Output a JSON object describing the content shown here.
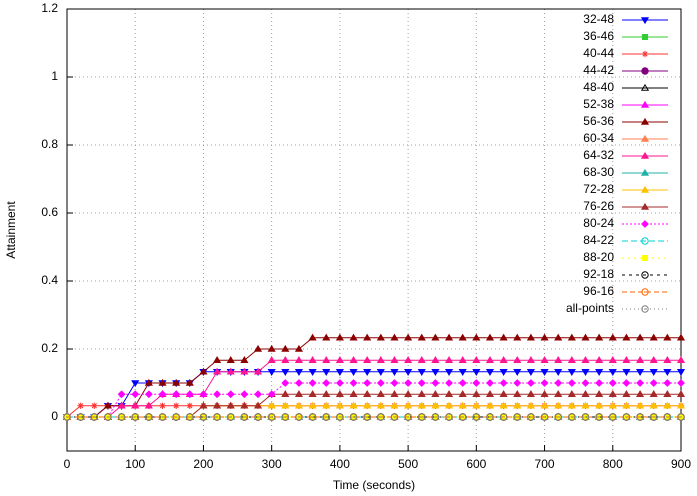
{
  "chart_data": {
    "type": "line",
    "xlabel": "Time (seconds)",
    "ylabel": "Attainment",
    "xlim": [
      0,
      900
    ],
    "ylim": [
      -0.1,
      1.2
    ],
    "xticks": [
      0,
      100,
      200,
      300,
      400,
      500,
      600,
      700,
      800,
      900
    ],
    "yticks": [
      0,
      0.2,
      0.4,
      0.6,
      0.8,
      1,
      1.2
    ],
    "grid": true,
    "legend": "top-right",
    "x": [
      0,
      20,
      40,
      60,
      80,
      100,
      120,
      140,
      160,
      180,
      200,
      220,
      240,
      260,
      280,
      300,
      320,
      340,
      360,
      380,
      400,
      420,
      440,
      460,
      480,
      500,
      520,
      540,
      560,
      580,
      600,
      620,
      640,
      660,
      680,
      700,
      720,
      740,
      760,
      780,
      800,
      820,
      840,
      860,
      880,
      900
    ],
    "series": [
      {
        "name": "32-48",
        "color": "#0000ff",
        "marker": "tri-down",
        "values": [
          0,
          0,
          0,
          0.033,
          0.033,
          0.1,
          0.1,
          0.1,
          0.1,
          0.1,
          0.133,
          0.133,
          0.133,
          0.133,
          0.133,
          0.133,
          0.133,
          0.133,
          0.133,
          0.133,
          0.133,
          0.133,
          0.133,
          0.133,
          0.133,
          0.133,
          0.133,
          0.133,
          0.133,
          0.133,
          0.133,
          0.133,
          0.133,
          0.133,
          0.133,
          0.133,
          0.133,
          0.133,
          0.133,
          0.133,
          0.133,
          0.133,
          0.133,
          0.133,
          0.133,
          0.133
        ]
      },
      {
        "name": "36-46",
        "color": "#33cc33",
        "marker": "square",
        "values": [
          0,
          0,
          0,
          0,
          0,
          0,
          0,
          0,
          0,
          0,
          0,
          0,
          0,
          0,
          0,
          0,
          0,
          0,
          0,
          0,
          0,
          0,
          0,
          0,
          0,
          0,
          0,
          0,
          0,
          0,
          0,
          0,
          0,
          0,
          0,
          0,
          0,
          0,
          0,
          0,
          0,
          0,
          0,
          0,
          0,
          0
        ]
      },
      {
        "name": "40-44",
        "color": "#ff3030",
        "marker": "star",
        "values": [
          0,
          0.033,
          0.033,
          0.033,
          0.033,
          0.033,
          0.033,
          0.033,
          0.033,
          0.033,
          0.033,
          0.033,
          0.033,
          0.033,
          0.033,
          0.033,
          0.033,
          0.033,
          0.033,
          0.033,
          0.033,
          0.033,
          0.033,
          0.033,
          0.033,
          0.033,
          0.033,
          0.033,
          0.033,
          0.033,
          0.033,
          0.033,
          0.033,
          0.033,
          0.033,
          0.033,
          0.033,
          0.033,
          0.033,
          0.033,
          0.033,
          0.033,
          0.033,
          0.033,
          0.033,
          0.033
        ]
      },
      {
        "name": "44-42",
        "color": "#800080",
        "marker": "circle",
        "values": [
          0,
          0,
          0,
          0,
          0,
          0,
          0,
          0,
          0,
          0,
          0,
          0,
          0,
          0,
          0,
          0,
          0,
          0,
          0,
          0,
          0,
          0,
          0,
          0,
          0,
          0,
          0,
          0,
          0,
          0,
          0,
          0,
          0,
          0,
          0,
          0,
          0,
          0,
          0,
          0,
          0,
          0,
          0,
          0,
          0,
          0
        ]
      },
      {
        "name": "48-40",
        "color": "#000000",
        "marker": "tri-up-open",
        "values": [
          0,
          0,
          0,
          0,
          0,
          0,
          0,
          0,
          0,
          0,
          0,
          0,
          0,
          0,
          0,
          0,
          0,
          0,
          0,
          0,
          0,
          0,
          0,
          0,
          0,
          0,
          0,
          0,
          0,
          0,
          0,
          0,
          0,
          0,
          0,
          0,
          0,
          0,
          0,
          0,
          0,
          0,
          0,
          0,
          0,
          0
        ]
      },
      {
        "name": "52-38",
        "color": "#ff00ff",
        "marker": "tri-up",
        "values": [
          0,
          0,
          0,
          0,
          0,
          0,
          0,
          0,
          0,
          0,
          0,
          0,
          0,
          0,
          0,
          0,
          0,
          0,
          0,
          0,
          0,
          0,
          0,
          0,
          0,
          0,
          0,
          0,
          0,
          0,
          0,
          0,
          0,
          0,
          0,
          0,
          0,
          0,
          0,
          0,
          0,
          0,
          0,
          0,
          0,
          0
        ]
      },
      {
        "name": "56-36",
        "color": "#8b0000",
        "marker": "tri-up",
        "values": [
          0,
          0,
          0,
          0.033,
          0.033,
          0.033,
          0.1,
          0.1,
          0.1,
          0.1,
          0.133,
          0.167,
          0.167,
          0.167,
          0.2,
          0.2,
          0.2,
          0.2,
          0.233,
          0.233,
          0.233,
          0.233,
          0.233,
          0.233,
          0.233,
          0.233,
          0.233,
          0.233,
          0.233,
          0.233,
          0.233,
          0.233,
          0.233,
          0.233,
          0.233,
          0.233,
          0.233,
          0.233,
          0.233,
          0.233,
          0.233,
          0.233,
          0.233,
          0.233,
          0.233,
          0.233
        ]
      },
      {
        "name": "60-34",
        "color": "#ff7f50",
        "marker": "tri-up",
        "values": [
          0,
          0,
          0,
          0,
          0,
          0,
          0,
          0,
          0,
          0,
          0,
          0,
          0,
          0,
          0,
          0,
          0,
          0,
          0,
          0,
          0,
          0,
          0,
          0,
          0,
          0,
          0,
          0,
          0,
          0,
          0,
          0,
          0,
          0,
          0,
          0,
          0,
          0,
          0,
          0,
          0,
          0,
          0,
          0,
          0,
          0
        ]
      },
      {
        "name": "64-32",
        "color": "#ff1493",
        "marker": "tri-up",
        "values": [
          0,
          0,
          0,
          0,
          0.033,
          0.033,
          0.033,
          0.067,
          0.067,
          0.067,
          0.067,
          0.133,
          0.133,
          0.133,
          0.133,
          0.167,
          0.167,
          0.167,
          0.167,
          0.167,
          0.167,
          0.167,
          0.167,
          0.167,
          0.167,
          0.167,
          0.167,
          0.167,
          0.167,
          0.167,
          0.167,
          0.167,
          0.167,
          0.167,
          0.167,
          0.167,
          0.167,
          0.167,
          0.167,
          0.167,
          0.167,
          0.167,
          0.167,
          0.167,
          0.167,
          0.167
        ]
      },
      {
        "name": "68-30",
        "color": "#20b2aa",
        "marker": "tri-up",
        "values": [
          0,
          0,
          0,
          0,
          0,
          0,
          0,
          0,
          0,
          0,
          0,
          0,
          0,
          0,
          0,
          0,
          0,
          0,
          0,
          0,
          0,
          0,
          0,
          0,
          0,
          0,
          0,
          0,
          0,
          0,
          0,
          0,
          0,
          0,
          0,
          0,
          0,
          0,
          0,
          0,
          0,
          0,
          0,
          0,
          0,
          0
        ]
      },
      {
        "name": "72-28",
        "color": "#ffc000",
        "marker": "tri-up",
        "values": [
          0,
          0,
          0,
          0,
          0,
          0,
          0,
          0,
          0,
          0,
          0.033,
          0.033,
          0.033,
          0.033,
          0.033,
          0.033,
          0.033,
          0.033,
          0.033,
          0.033,
          0.033,
          0.033,
          0.033,
          0.033,
          0.033,
          0.033,
          0.033,
          0.033,
          0.033,
          0.033,
          0.033,
          0.033,
          0.033,
          0.033,
          0.033,
          0.033,
          0.033,
          0.033,
          0.033,
          0.033,
          0.033,
          0.033,
          0.033,
          0.033,
          0.033,
          0.033
        ]
      },
      {
        "name": "76-26",
        "color": "#a52a2a",
        "marker": "tri-up",
        "values": [
          0,
          0,
          0,
          0,
          0,
          0,
          0,
          0,
          0,
          0,
          0.033,
          0.033,
          0.033,
          0.033,
          0.033,
          0.067,
          0.067,
          0.067,
          0.067,
          0.067,
          0.067,
          0.067,
          0.067,
          0.067,
          0.067,
          0.067,
          0.067,
          0.067,
          0.067,
          0.067,
          0.067,
          0.067,
          0.067,
          0.067,
          0.067,
          0.067,
          0.067,
          0.067,
          0.067,
          0.067,
          0.067,
          0.067,
          0.067,
          0.067,
          0.067,
          0.067
        ]
      },
      {
        "name": "80-24",
        "color": "#ff00ff",
        "marker": "diamond",
        "dash": "2,2",
        "values": [
          0,
          0,
          0,
          0,
          0.067,
          0.067,
          0.067,
          0.067,
          0.067,
          0.067,
          0.067,
          0.067,
          0.067,
          0.067,
          0.067,
          0.067,
          0.1,
          0.1,
          0.1,
          0.1,
          0.1,
          0.1,
          0.1,
          0.1,
          0.1,
          0.1,
          0.1,
          0.1,
          0.1,
          0.1,
          0.1,
          0.1,
          0.1,
          0.1,
          0.1,
          0.1,
          0.1,
          0.1,
          0.1,
          0.1,
          0.1,
          0.1,
          0.1,
          0.1,
          0.1,
          0.1
        ]
      },
      {
        "name": "84-22",
        "color": "#00d0d0",
        "marker": "circle-open",
        "dash": "6,3",
        "values": [
          0,
          0,
          0,
          0,
          0,
          0,
          0,
          0,
          0,
          0,
          0,
          0,
          0,
          0,
          0,
          0,
          0,
          0,
          0,
          0,
          0,
          0,
          0,
          0,
          0,
          0,
          0,
          0,
          0,
          0,
          0,
          0,
          0,
          0,
          0,
          0,
          0,
          0,
          0,
          0,
          0,
          0,
          0,
          0,
          0,
          0
        ]
      },
      {
        "name": "88-20",
        "color": "#ffff00",
        "marker": "square",
        "dash": "2,4",
        "values": [
          0,
          0,
          0,
          0,
          0,
          0,
          0,
          0,
          0,
          0,
          0,
          0,
          0,
          0,
          0,
          0,
          0,
          0,
          0,
          0,
          0,
          0,
          0,
          0,
          0,
          0,
          0,
          0,
          0,
          0,
          0,
          0,
          0,
          0,
          0,
          0,
          0,
          0,
          0,
          0,
          0,
          0,
          0,
          0,
          0,
          0
        ]
      },
      {
        "name": "92-18",
        "color": "#000000",
        "marker": "dot-circle",
        "dash": "3,4",
        "values": [
          0,
          0,
          0,
          0,
          0,
          0,
          0,
          0,
          0,
          0,
          0,
          0,
          0,
          0,
          0,
          0,
          0,
          0,
          0,
          0,
          0,
          0,
          0,
          0,
          0,
          0,
          0,
          0,
          0,
          0,
          0,
          0,
          0,
          0,
          0,
          0,
          0,
          0,
          0,
          0,
          0,
          0,
          0,
          0,
          0,
          0
        ]
      },
      {
        "name": "96-16",
        "color": "#ff6600",
        "marker": "dot-circle",
        "dash": "5,3",
        "values": [
          0,
          0,
          0,
          0,
          0,
          0,
          0,
          0,
          0,
          0,
          0,
          0,
          0,
          0,
          0,
          0,
          0,
          0,
          0,
          0,
          0,
          0,
          0,
          0,
          0,
          0,
          0,
          0,
          0,
          0,
          0,
          0,
          0,
          0,
          0,
          0,
          0,
          0,
          0,
          0,
          0,
          0,
          0,
          0,
          0,
          0
        ]
      },
      {
        "name": "all-points",
        "color": "#808080",
        "marker": "dot-circle",
        "dash": "1,3",
        "values": [
          0,
          0,
          0,
          0,
          0,
          0,
          0,
          0,
          0,
          0,
          0,
          0,
          0,
          0,
          0,
          0,
          0,
          0,
          0,
          0,
          0,
          0,
          0,
          0,
          0,
          0,
          0,
          0,
          0,
          0,
          0,
          0,
          0,
          0,
          0,
          0,
          0,
          0,
          0,
          0,
          0,
          0,
          0,
          0,
          0,
          0
        ]
      }
    ]
  }
}
